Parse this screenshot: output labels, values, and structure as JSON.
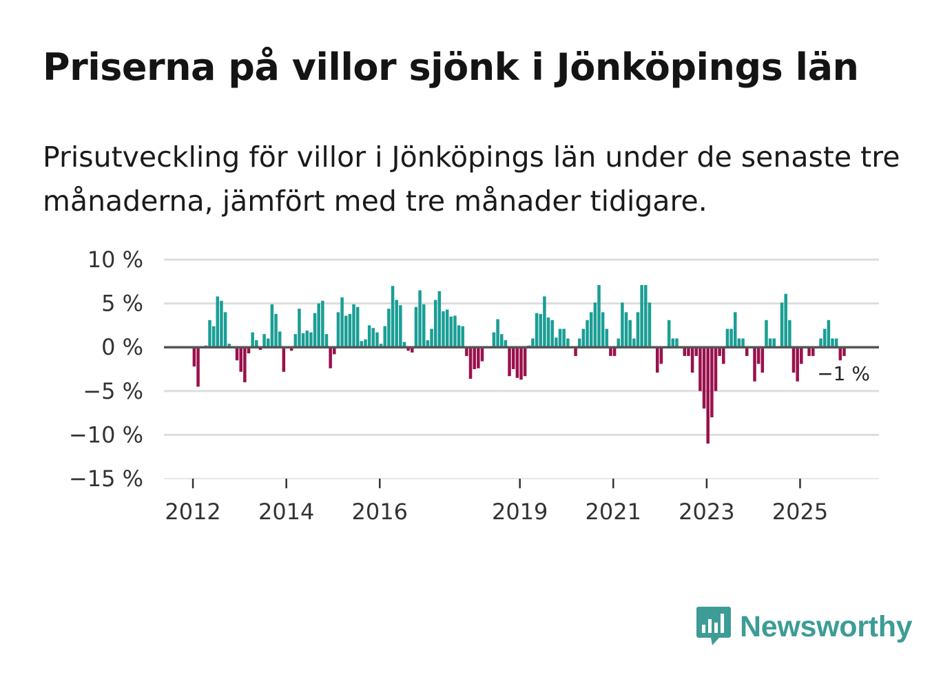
{
  "header": {
    "title": "Priserna på villor sjönk i Jönköpings län",
    "subtitle": "Prisutveckling för villor i Jönköpings län under de senaste tre månaderna, jämfört med tre månader tidigare."
  },
  "brand": {
    "name": "Newsworthy",
    "icon": "newsworthy-logo-icon"
  },
  "colors": {
    "positive": "#1a9e95",
    "negative": "#99114c",
    "grid": "#dddddd",
    "zero": "#555555",
    "brand": "#3d9c96"
  },
  "chart_data": {
    "type": "bar",
    "title": "Priserna på villor sjönk i Jönköpings län",
    "xlabel": "",
    "ylabel": "",
    "ylim": [
      -15,
      10
    ],
    "y_ticks": [
      10,
      5,
      0,
      -5,
      -10,
      -15
    ],
    "y_tick_labels": [
      "10 %",
      "5 %",
      "0 %",
      "−5 %",
      "−10 %",
      "−15 %"
    ],
    "x_ticks": [
      2012,
      2014,
      2016,
      2019,
      2021,
      2023,
      2025
    ],
    "x_tick_labels": [
      "2012",
      "2014",
      "2016",
      "2019",
      "2021",
      "2023",
      "2025"
    ],
    "series": [
      {
        "name": "Prisutveckling",
        "start": "2011-07",
        "frequency": "monthly",
        "values": [
          0.0,
          0.0,
          0.0,
          0.0,
          0.0,
          0.0,
          -2.2,
          -4.5,
          0.0,
          0.2,
          3.1,
          2.4,
          5.8,
          5.3,
          4.0,
          0.4,
          0.0,
          -1.5,
          -2.8,
          -4.0,
          -0.7,
          1.7,
          0.8,
          -0.3,
          1.5,
          1.0,
          4.9,
          3.8,
          1.8,
          -2.8,
          0.0,
          -0.4,
          1.5,
          4.4,
          1.6,
          1.9,
          1.7,
          3.9,
          5.0,
          5.3,
          1.5,
          -2.4,
          -0.8,
          4.0,
          5.7,
          3.6,
          3.8,
          4.9,
          4.6,
          0.7,
          0.9,
          2.5,
          2.2,
          1.7,
          0.4,
          2.4,
          4.4,
          7.0,
          5.4,
          4.8,
          0.6,
          -0.4,
          -0.6,
          4.6,
          6.5,
          4.9,
          0.8,
          2.1,
          5.4,
          6.4,
          4.1,
          4.3,
          3.5,
          3.6,
          2.5,
          2.4,
          -1.0,
          -3.6,
          -2.5,
          -2.4,
          -1.6,
          0.0,
          0.0,
          1.7,
          3.2,
          1.5,
          0.8,
          -3.3,
          -2.5,
          -3.5,
          -3.7,
          -3.3,
          0.2,
          1.0,
          3.9,
          3.8,
          5.8,
          3.4,
          3.1,
          1.1,
          2.1,
          2.1,
          1.0,
          0.0,
          -1.0,
          1.0,
          2.1,
          3.1,
          4.0,
          5.1,
          7.1,
          4.0,
          2.1,
          -1.0,
          -1.0,
          1.0,
          5.1,
          4.0,
          3.1,
          1.0,
          4.0,
          7.1,
          7.1,
          5.1,
          0.0,
          -2.9,
          -1.9,
          0.0,
          3.1,
          1.0,
          1.0,
          0.0,
          -1.0,
          -1.0,
          -2.9,
          -1.0,
          -5.0,
          -7.0,
          -11.0,
          -8.0,
          -5.0,
          -1.0,
          -1.9,
          2.1,
          2.1,
          4.0,
          1.0,
          1.0,
          -1.0,
          0.0,
          -3.9,
          -1.9,
          -2.9,
          3.1,
          1.0,
          1.0,
          0.0,
          5.1,
          6.1,
          3.1,
          -2.9,
          -3.9,
          -1.9,
          0.0,
          -1.0,
          -1.0,
          0.0,
          1.0,
          2.1,
          3.1,
          1.0,
          1.0,
          -1.5,
          -1.0
        ]
      }
    ],
    "annotations": [
      {
        "text": "−1 %",
        "target": "last"
      }
    ]
  }
}
